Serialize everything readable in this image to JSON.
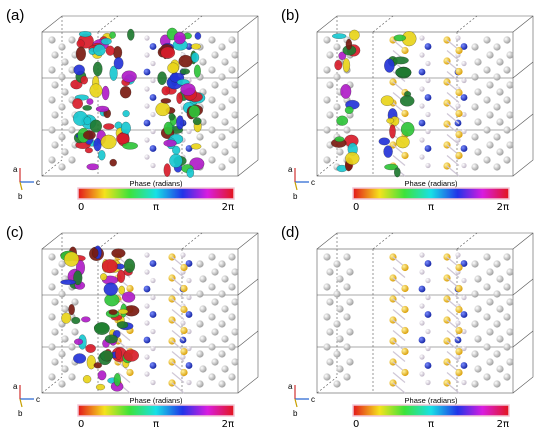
{
  "panels": [
    {
      "label": "(a)",
      "axes": {
        "a": "a",
        "b": "b",
        "c": "c"
      },
      "colorbar": {
        "title": "Phase (radians)",
        "ticks": [
          "0",
          "π",
          "2π"
        ]
      }
    },
    {
      "label": "(b)",
      "axes": {
        "a": "a",
        "b": "b",
        "c": "c"
      },
      "colorbar": {
        "title": "Phase (radians)",
        "ticks": [
          "0",
          "π",
          "2π"
        ]
      }
    },
    {
      "label": "(c)",
      "axes": {
        "a": "a",
        "b": "b",
        "c": "c"
      },
      "colorbar": {
        "title": "Phase (radians)",
        "ticks": [
          "0",
          "π",
          "2π"
        ]
      }
    },
    {
      "label": "(d)",
      "axes": {
        "a": "a",
        "b": "b",
        "c": "c"
      },
      "colorbar": {
        "title": "Phase (radians)",
        "ticks": [
          "0",
          "π",
          "2π"
        ]
      }
    }
  ],
  "colors": {
    "graphite_atom": "#b9b9b9",
    "sulfur_atom": "#f2c21a",
    "metal_atom": "#d9d3dc",
    "orbital_blue": "#2d46d8",
    "axis_a": "#d03030",
    "axis_b": "#c8a000",
    "axis_c": "#2060d0",
    "cell_edge": "#555555"
  }
}
